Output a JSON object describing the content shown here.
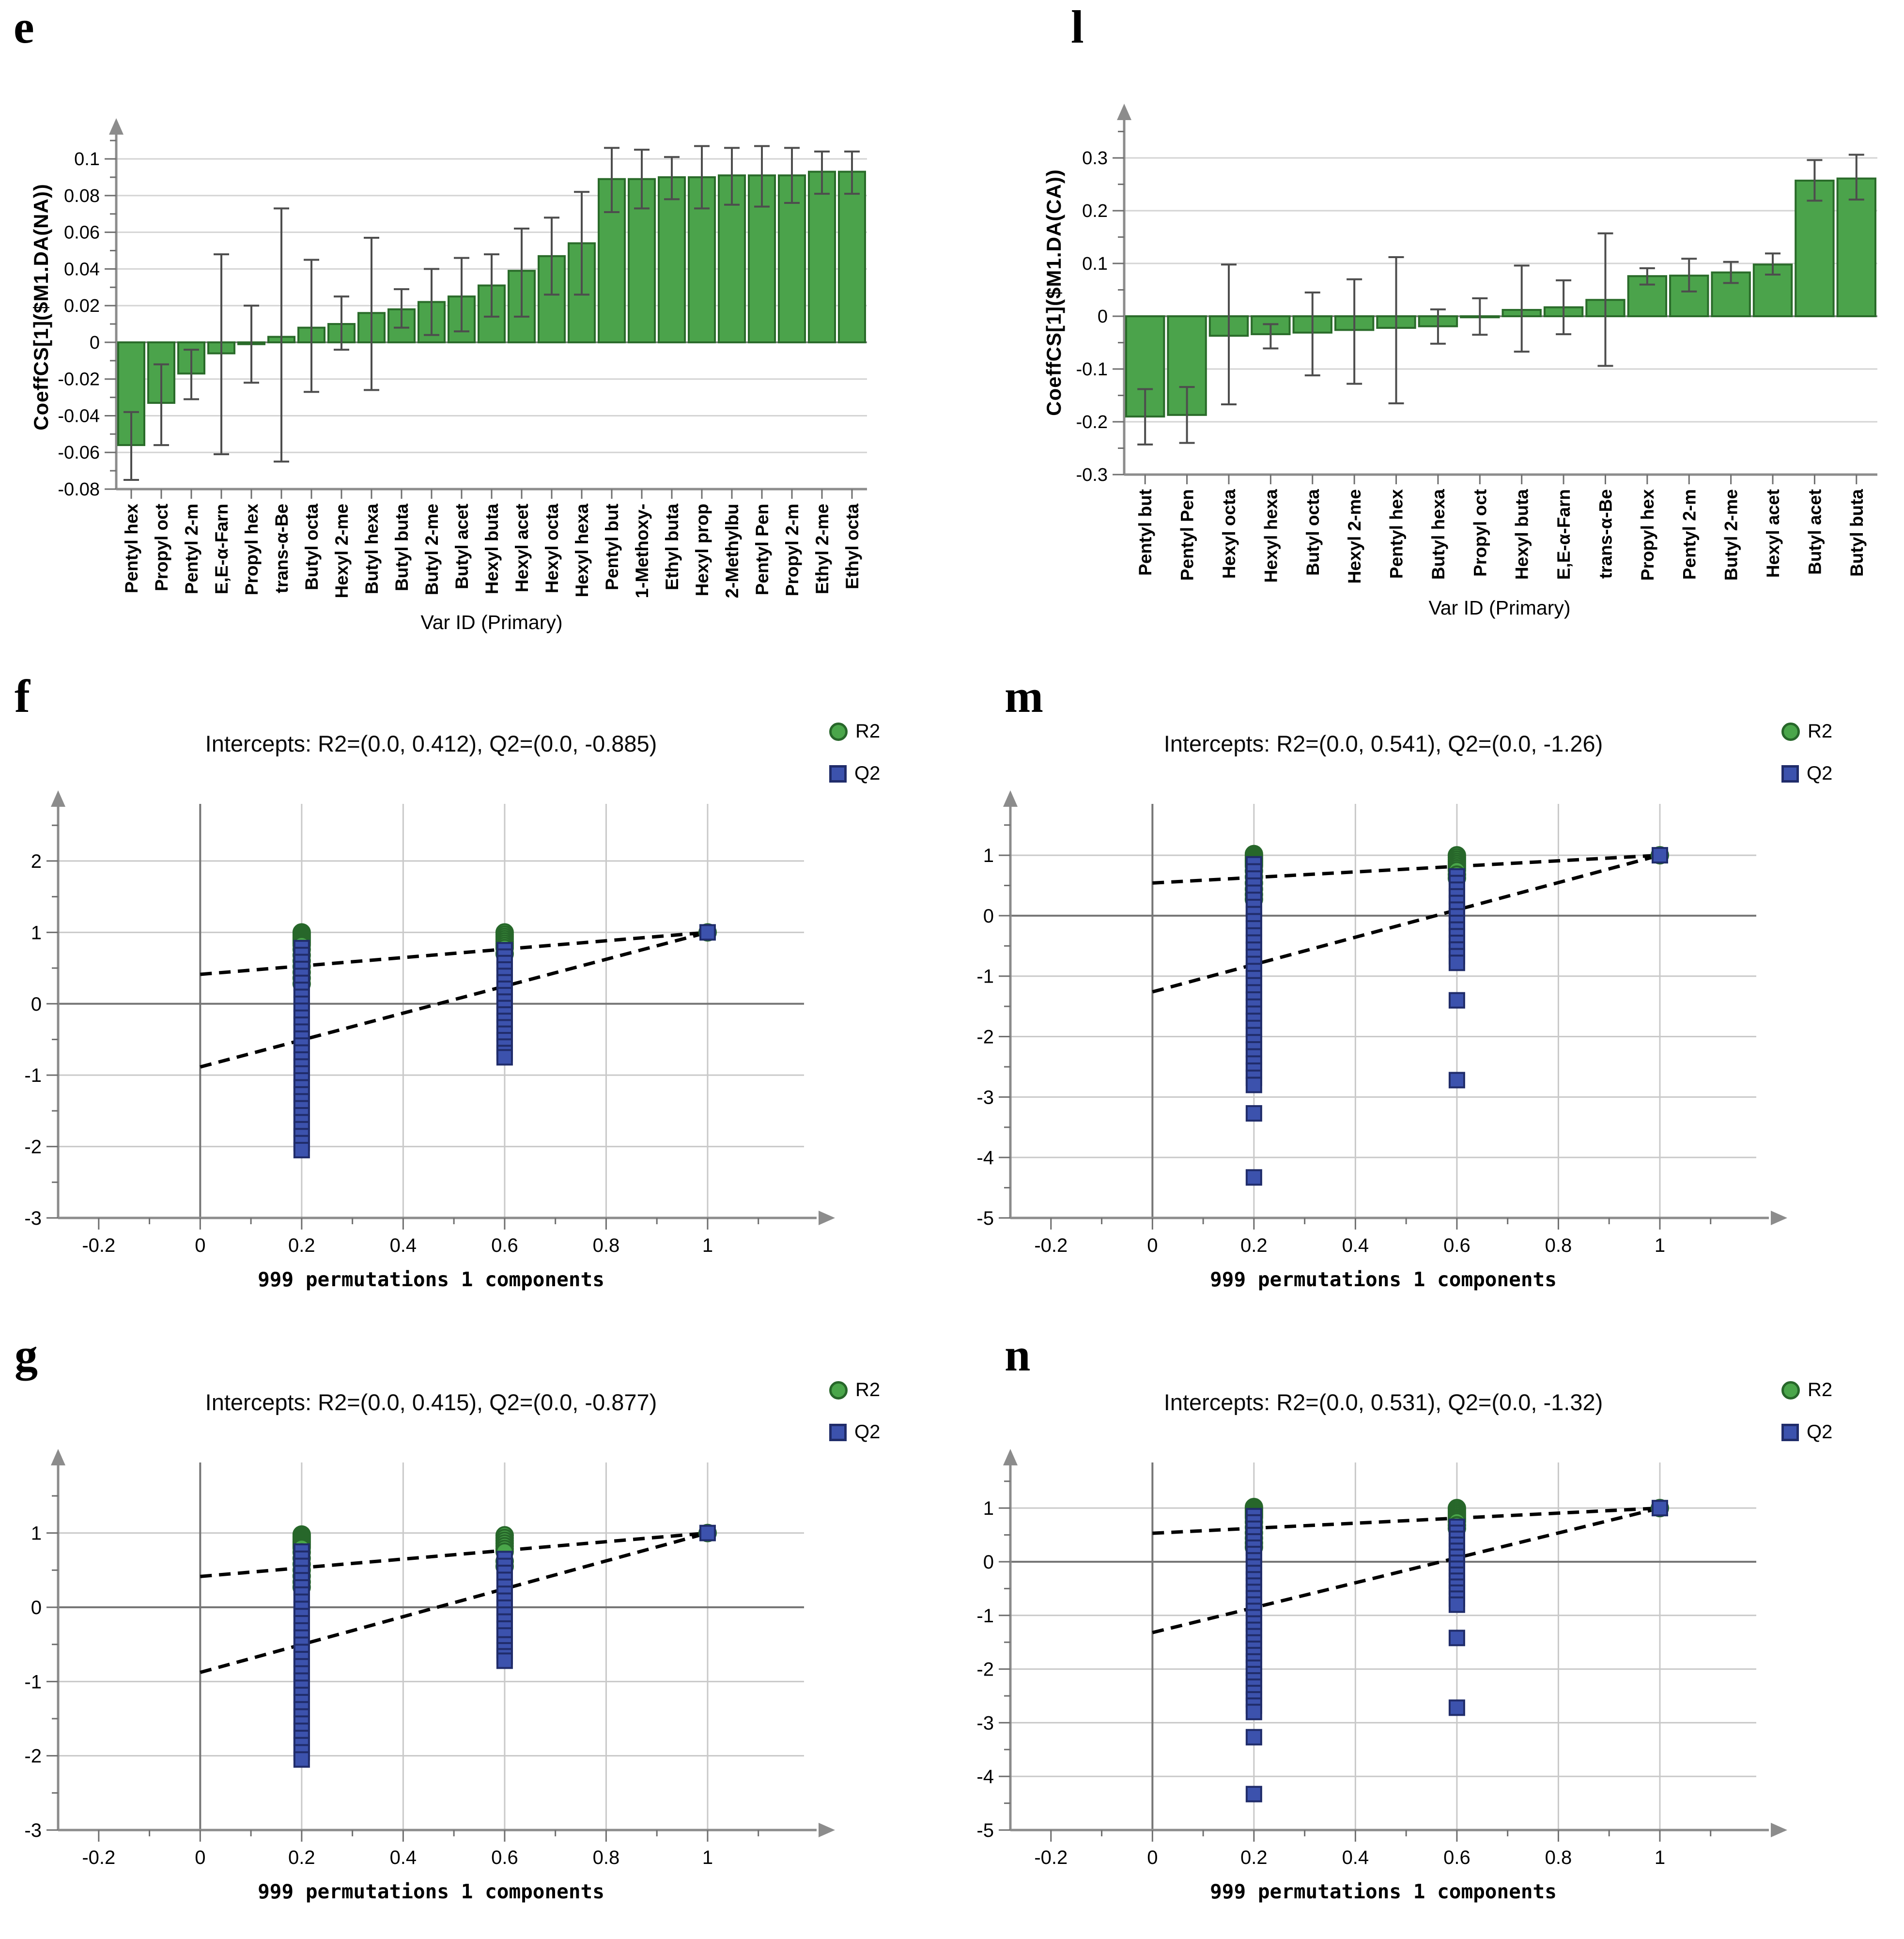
{
  "colors": {
    "bar_fill": "#4ba34b",
    "bar_stroke": "#2a6b2a",
    "r2_fill": "#4aa64a",
    "r2_stroke": "#27672a",
    "q2_fill": "#3c52ad",
    "q2_stroke": "#202c6a",
    "error_bar": "#4d4d4d",
    "grid_light": "#d4d4d4",
    "grid_perm": "#c9c9c9",
    "axis_gray": "#8c8c8c",
    "zero_line": "#767676",
    "dashed_line": "#000000"
  },
  "chart_data": [
    {
      "panel": "e",
      "type": "bar",
      "ylabel": "CoeffCS[1]($M1.DA(NA))",
      "xlabel": "Var ID (Primary)",
      "ylim": [
        -0.08,
        0.1185
      ],
      "yticks": [
        0.1,
        0.08,
        0.06,
        0.04,
        0.02,
        0,
        -0.02,
        -0.04,
        -0.06,
        -0.08
      ],
      "ytick_labels": [
        "0.1",
        "0.08",
        "0.06",
        "0.04",
        "0.02",
        "0",
        "-0.02",
        "-0.04",
        "-0.06",
        "-0.08"
      ],
      "grid": true,
      "categories": [
        "Pentyl hex",
        "Propyl oct",
        "Pentyl 2-m",
        "E,E-α-Farn",
        "Propyl hex",
        "trans-α-Be",
        "Butyl octa",
        "Hexyl 2-me",
        "Butyl hexa",
        "Butyl buta",
        "Butyl 2-me",
        "Butyl acet",
        "Hexyl buta",
        "Hexyl acet",
        "Hexyl octa",
        "Hexyl hexa",
        "Pentyl but",
        "1-Methoxy-",
        "Ethyl buta",
        "Hexyl prop",
        "2-Methylbu",
        "Pentyl Pen",
        "Propyl 2-m",
        "Ethyl 2-me",
        "Ethyl octa"
      ],
      "values": [
        -0.056,
        -0.033,
        -0.017,
        -0.006,
        -0.001,
        0.003,
        0.008,
        0.01,
        0.016,
        0.018,
        0.022,
        0.025,
        0.031,
        0.039,
        0.047,
        0.054,
        0.089,
        0.089,
        0.09,
        0.09,
        0.091,
        0.091,
        0.091,
        0.093,
        0.093
      ],
      "err_lo": [
        -0.075,
        -0.056,
        -0.031,
        -0.061,
        -0.022,
        -0.065,
        -0.027,
        -0.004,
        -0.026,
        0.008,
        0.004,
        0.006,
        0.014,
        0.014,
        0.026,
        0.026,
        0.071,
        0.073,
        0.078,
        0.073,
        0.075,
        0.074,
        0.076,
        0.081,
        0.081
      ],
      "err_hi": [
        -0.038,
        -0.012,
        -0.004,
        0.048,
        0.02,
        0.073,
        0.045,
        0.025,
        0.057,
        0.029,
        0.04,
        0.046,
        0.048,
        0.062,
        0.068,
        0.082,
        0.106,
        0.105,
        0.101,
        0.107,
        0.106,
        0.107,
        0.106,
        0.104,
        0.104
      ]
    },
    {
      "panel": "l",
      "type": "bar",
      "ylabel": "CoeffCS[1]($M1.DA(CA))",
      "xlabel": "Var ID (Primary)",
      "ylim": [
        -0.3,
        0.39
      ],
      "yticks": [
        0.3,
        0.2,
        0.1,
        0,
        -0.1,
        -0.2,
        -0.3
      ],
      "ytick_labels": [
        "0.3",
        "0.2",
        "0.1",
        "0",
        "-0.1",
        "-0.2",
        "-0.3"
      ],
      "grid": true,
      "categories": [
        "Pentyl but",
        "Pentyl Pen",
        "Hexyl octa",
        "Hexyl hexa",
        "Butyl octa",
        "Hexyl 2-me",
        "Pentyl hex",
        "Butyl hexa",
        "Propyl oct",
        "Hexyl buta",
        "E,E-α-Farn",
        "trans-α-Be",
        "Propyl hex",
        "Pentyl 2-m",
        "Butyl 2-me",
        "Hexyl acet",
        "Butyl acet",
        "Butyl buta"
      ],
      "values": [
        -0.19,
        -0.187,
        -0.037,
        -0.034,
        -0.031,
        -0.026,
        -0.022,
        -0.019,
        -0.002,
        0.012,
        0.017,
        0.031,
        0.076,
        0.077,
        0.083,
        0.098,
        0.257,
        0.261
      ],
      "err_lo": [
        -0.243,
        -0.24,
        -0.167,
        -0.061,
        -0.112,
        -0.128,
        -0.165,
        -0.052,
        -0.035,
        -0.067,
        -0.034,
        -0.094,
        0.06,
        0.047,
        0.063,
        0.079,
        0.219,
        0.221
      ],
      "err_hi": [
        -0.138,
        -0.134,
        0.098,
        -0.015,
        0.045,
        0.07,
        0.112,
        0.013,
        0.034,
        0.096,
        0.068,
        0.157,
        0.091,
        0.109,
        0.103,
        0.119,
        0.296,
        0.306
      ]
    },
    {
      "panel": "f",
      "type": "scatter",
      "title": "Intercepts: R2=(0.0, 0.412), Q2=(0.0, -0.885)",
      "xlabel": "999 permutations 1 components",
      "legend": [
        "R2",
        "Q2"
      ],
      "r2_intercept": 0.412,
      "q2_intercept": -0.885,
      "xticks": [
        -0.2,
        0,
        0.2,
        0.4,
        0.6,
        0.8,
        1
      ],
      "yticks": [
        -3,
        -2,
        -1,
        0,
        1,
        2
      ],
      "xlim": [
        -0.28,
        1.19
      ],
      "ylim": [
        -3,
        2.8
      ],
      "clusters": [
        {
          "series": "R2",
          "x": 0.2,
          "span": [
            1.0,
            0.82
          ],
          "count": 9
        },
        {
          "series": "R2",
          "x": 0.2,
          "points": [
            0.76,
            0.68,
            0.6,
            0.52,
            0.44,
            0.36,
            0.28
          ]
        },
        {
          "series": "R2",
          "x": 0.6,
          "span": [
            1.0,
            0.78
          ],
          "count": 8
        },
        {
          "series": "R2",
          "x": 0.6,
          "points": [
            0.7
          ]
        },
        {
          "series": "R2",
          "x": 1,
          "points": [
            1.0
          ]
        },
        {
          "series": "Q2",
          "x": 0.2,
          "span": [
            0.78,
            -2.05
          ],
          "count": 30
        },
        {
          "series": "Q2",
          "x": 0.6,
          "span": [
            0.75,
            -0.6
          ],
          "count": 16
        },
        {
          "series": "Q2",
          "x": 0.6,
          "points": [
            -0.69,
            -0.75
          ]
        },
        {
          "series": "Q2",
          "x": 1,
          "points": [
            1.0
          ]
        }
      ]
    },
    {
      "panel": "m",
      "type": "scatter",
      "title": "Intercepts: R2=(0.0, 0.541), Q2=(0.0, -1.26)",
      "xlabel": "999 permutations 1 components",
      "legend": [
        "R2",
        "Q2"
      ],
      "r2_intercept": 0.541,
      "q2_intercept": -1.26,
      "xticks": [
        -0.2,
        0,
        0.2,
        0.4,
        0.6,
        0.8,
        1
      ],
      "yticks": [
        -5,
        -4,
        -3,
        -2,
        -1,
        0,
        1
      ],
      "xlim": [
        -0.28,
        1.19
      ],
      "ylim": [
        -5,
        1.85
      ],
      "clusters": [
        {
          "series": "R2",
          "x": 0.2,
          "span": [
            1.02,
            0.82
          ],
          "count": 9
        },
        {
          "series": "R2",
          "x": 0.2,
          "points": [
            0.74,
            0.64,
            0.54,
            0.44,
            0.35,
            0.27
          ]
        },
        {
          "series": "R2",
          "x": 0.6,
          "span": [
            1.0,
            0.75
          ],
          "count": 8
        },
        {
          "series": "R2",
          "x": 0.6,
          "points": [
            0.68,
            0.62
          ]
        },
        {
          "series": "R2",
          "x": 1,
          "points": [
            1.0
          ]
        },
        {
          "series": "Q2",
          "x": 0.2,
          "span": [
            0.85,
            -2.8
          ],
          "count": 32
        },
        {
          "series": "Q2",
          "x": 0.2,
          "points": [
            -3.27,
            -4.33
          ]
        },
        {
          "series": "Q2",
          "x": 0.6,
          "span": [
            0.65,
            -0.78
          ],
          "count": 14
        },
        {
          "series": "Q2",
          "x": 0.6,
          "points": [
            -1.4,
            -2.72
          ]
        },
        {
          "series": "Q2",
          "x": 1,
          "points": [
            1.0
          ]
        }
      ]
    },
    {
      "panel": "g",
      "type": "scatter",
      "title": "Intercepts: R2=(0.0, 0.415), Q2=(0.0, -0.877)",
      "xlabel": "999 permutations 1 components",
      "legend": [
        "R2",
        "Q2"
      ],
      "r2_intercept": 0.415,
      "q2_intercept": -0.877,
      "xticks": [
        -0.2,
        0,
        0.2,
        0.4,
        0.6,
        0.8,
        1
      ],
      "yticks": [
        -3,
        -2,
        -1,
        0,
        1
      ],
      "xlim": [
        -0.28,
        1.19
      ],
      "ylim": [
        -3,
        1.95
      ],
      "clusters": [
        {
          "series": "R2",
          "x": 0.2,
          "span": [
            0.98,
            0.8
          ],
          "count": 9
        },
        {
          "series": "R2",
          "x": 0.2,
          "points": [
            0.74,
            0.66,
            0.58,
            0.5,
            0.42,
            0.34,
            0.27
          ]
        },
        {
          "series": "R2",
          "x": 0.6,
          "span": [
            0.97,
            0.75
          ],
          "count": 7
        },
        {
          "series": "R2",
          "x": 0.6,
          "points": [
            0.62,
            0.55
          ]
        },
        {
          "series": "R2",
          "x": 1,
          "points": [
            1.0
          ]
        },
        {
          "series": "Q2",
          "x": 0.2,
          "span": [
            0.75,
            -2.05
          ],
          "count": 30
        },
        {
          "series": "Q2",
          "x": 0.6,
          "span": [
            0.65,
            -0.38
          ],
          "count": 12
        },
        {
          "series": "Q2",
          "x": 0.6,
          "points": [
            -0.5,
            -0.58,
            -0.66,
            -0.72
          ]
        },
        {
          "series": "Q2",
          "x": 1,
          "points": [
            1.0
          ]
        }
      ]
    },
    {
      "panel": "n",
      "type": "scatter",
      "title": "Intercepts: R2=(0.0, 0.531), Q2=(0.0, -1.32)",
      "xlabel": "999 permutations 1 components",
      "legend": [
        "R2",
        "Q2"
      ],
      "r2_intercept": 0.531,
      "q2_intercept": -1.32,
      "xticks": [
        -0.2,
        0,
        0.2,
        0.4,
        0.6,
        0.8,
        1
      ],
      "yticks": [
        -5,
        -4,
        -3,
        -2,
        -1,
        0,
        1
      ],
      "xlim": [
        -0.28,
        1.19
      ],
      "ylim": [
        -5,
        1.85
      ],
      "clusters": [
        {
          "series": "R2",
          "x": 0.2,
          "span": [
            1.02,
            0.82
          ],
          "count": 9
        },
        {
          "series": "R2",
          "x": 0.2,
          "points": [
            0.74,
            0.64,
            0.54,
            0.44,
            0.35,
            0.27
          ]
        },
        {
          "series": "R2",
          "x": 0.6,
          "span": [
            1.0,
            0.75
          ],
          "count": 8
        },
        {
          "series": "R2",
          "x": 0.6,
          "points": [
            0.68,
            0.62
          ]
        },
        {
          "series": "R2",
          "x": 1,
          "points": [
            1.0
          ]
        },
        {
          "series": "Q2",
          "x": 0.2,
          "span": [
            0.85,
            -2.8
          ],
          "count": 32
        },
        {
          "series": "Q2",
          "x": 0.2,
          "points": [
            -3.27,
            -4.33
          ]
        },
        {
          "series": "Q2",
          "x": 0.6,
          "span": [
            0.65,
            -0.8
          ],
          "count": 14
        },
        {
          "series": "Q2",
          "x": 0.6,
          "points": [
            -1.42,
            -2.72
          ]
        },
        {
          "series": "Q2",
          "x": 1,
          "points": [
            1.0
          ]
        }
      ]
    }
  ]
}
